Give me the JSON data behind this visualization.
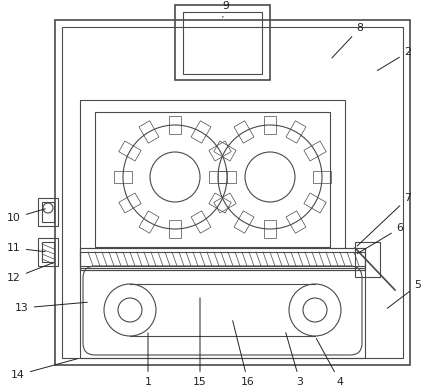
{
  "bg_color": "#ffffff",
  "lc": "#4a4a4a",
  "lw": 0.8,
  "lw2": 1.2,
  "figsize": [
    4.43,
    3.89
  ],
  "dpi": 100
}
